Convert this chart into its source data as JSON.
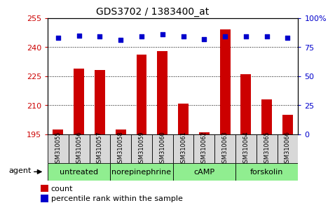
{
  "title": "GDS3702 / 1383400_at",
  "samples": [
    "GSM310055",
    "GSM310056",
    "GSM310057",
    "GSM310058",
    "GSM310059",
    "GSM310060",
    "GSM310061",
    "GSM310062",
    "GSM310063",
    "GSM310064",
    "GSM310065",
    "GSM310066"
  ],
  "counts": [
    197.5,
    229,
    228,
    197.5,
    236,
    238,
    211,
    196,
    249,
    226,
    213,
    205
  ],
  "percentile": [
    83,
    85,
    84,
    81,
    84,
    86,
    84,
    82,
    84,
    84,
    84,
    83
  ],
  "group_labels": [
    "untreated",
    "norepinephrine",
    "cAMP",
    "forskolin"
  ],
  "group_starts": [
    0,
    3,
    6,
    9
  ],
  "group_ends": [
    3,
    6,
    9,
    12
  ],
  "ylim_left": [
    195,
    255
  ],
  "ylim_right": [
    0,
    100
  ],
  "yticks_left": [
    195,
    210,
    225,
    240,
    255
  ],
  "yticks_right": [
    0,
    25,
    50,
    75,
    100
  ],
  "bar_color": "#CC0000",
  "dot_color": "#0000CC",
  "background_color": "#ffffff",
  "grid_color": "#000000",
  "sample_box_color": "#d8d8d8",
  "group_box_color": "#90ee90",
  "title_fontsize": 10,
  "axis_fontsize": 8,
  "sample_fontsize": 6,
  "group_fontsize": 8,
  "legend_fontsize": 8
}
